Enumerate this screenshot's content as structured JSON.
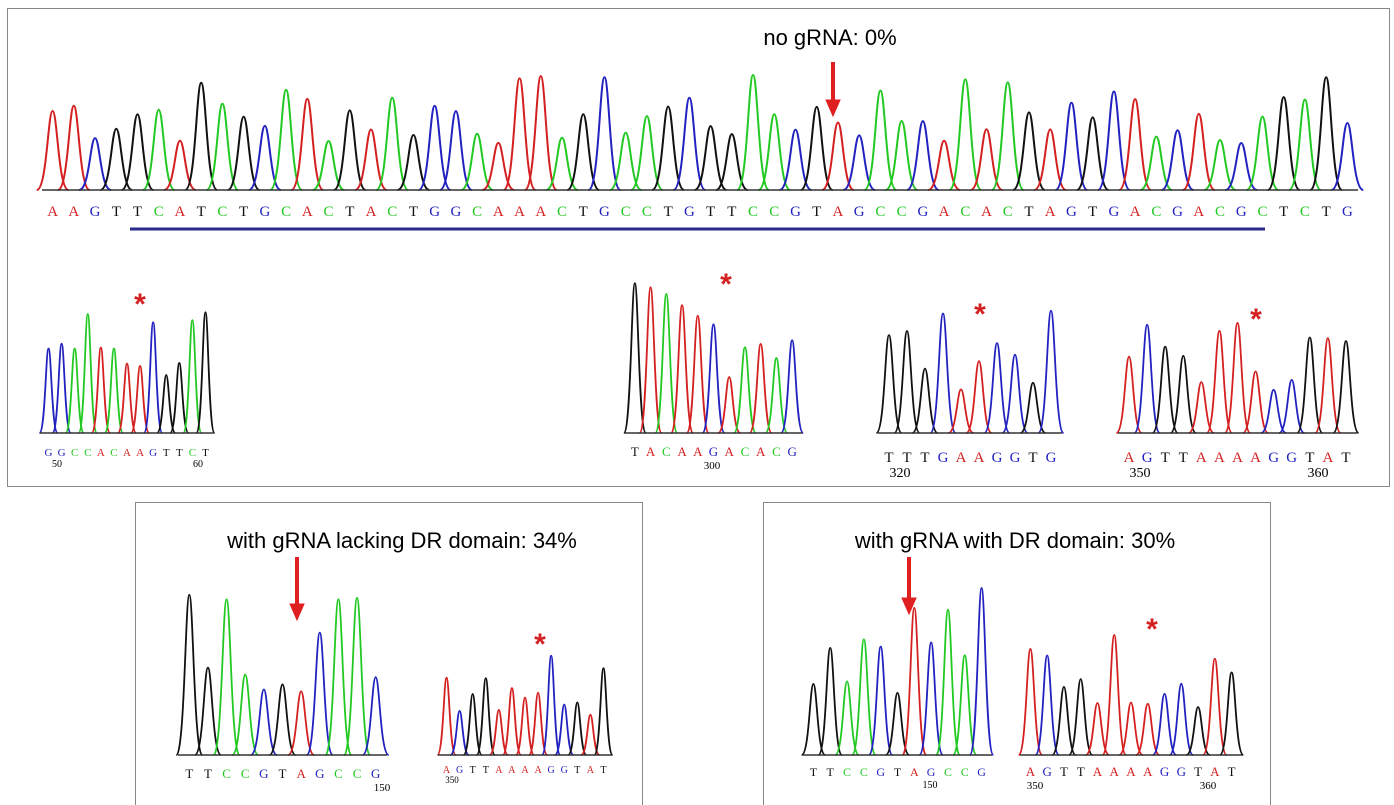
{
  "top_panel": {
    "label": "no gRNA: 0%",
    "sequence": "AAGTTCATCTGCACTACTGGCAAACTGCCTGTTCCGTAGCCGACACTAGTGACGACGCTCTG",
    "traces": [
      {
        "sequence": "GGCCACAAGTTCT",
        "positions": [
          50,
          60
        ]
      },
      {
        "sequence": "TACAAGACACG",
        "positions": [
          300
        ]
      },
      {
        "sequence": "TTTGAAGGTG",
        "positions": [
          320
        ]
      },
      {
        "sequence": "AGTTAAAAGGTAT",
        "positions": [
          350,
          360
        ]
      }
    ]
  },
  "asterisk": "*",
  "bottom_panels": [
    {
      "label": "with gRNA lacking DR domain: 34%",
      "traces": [
        {
          "sequence": "TTCCGTAGCCG",
          "positions": [
            150
          ]
        },
        {
          "sequence": "AGTTAAAAGGTAT",
          "positions": [
            350
          ]
        }
      ]
    },
    {
      "label": "with gRNA with DR domain: 30%",
      "traces": [
        {
          "sequence": "TTCCGTAGCCG",
          "positions": [
            150
          ]
        },
        {
          "sequence": "AGTTAAAAGGTAT",
          "positions": [
            350,
            360
          ]
        }
      ]
    }
  ]
}
